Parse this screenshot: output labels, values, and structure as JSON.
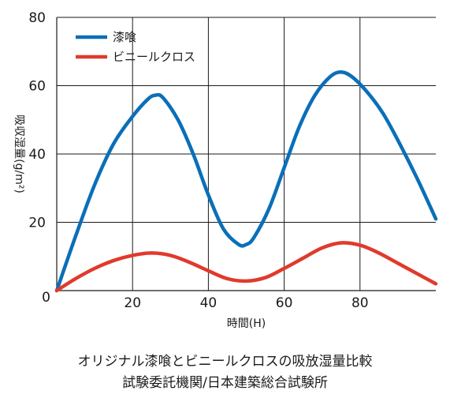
{
  "chart_data": {
    "type": "line",
    "xlim": [
      0,
      100
    ],
    "ylim": [
      0,
      80
    ],
    "x_ticks": [
      0,
      20,
      40,
      60,
      80
    ],
    "y_ticks": [
      0,
      20,
      40,
      60,
      80
    ],
    "x_tick_labels": [
      "0",
      "20",
      "40",
      "60",
      "80"
    ],
    "y_tick_labels": [
      "0",
      "20",
      "40",
      "60",
      "80"
    ],
    "xlabel": "時間(H)",
    "ylabel": "吸収湿量(g/m²)",
    "grid": true,
    "legend_position": "top-left",
    "series": [
      {
        "name": "漆喰",
        "color": "#0a6fb8",
        "x": [
          0,
          5,
          10,
          15,
          20,
          24,
          26,
          28,
          32,
          36,
          40,
          44,
          48,
          50,
          52,
          56,
          60,
          64,
          68,
          72,
          75,
          78,
          82,
          86,
          90,
          95,
          100
        ],
        "y": [
          0,
          16,
          31,
          43,
          51,
          56,
          57.2,
          56.5,
          50,
          40,
          28,
          18,
          13.5,
          13.5,
          15.5,
          24,
          36,
          48,
          57,
          62.5,
          64,
          62.5,
          58,
          52,
          44,
          33,
          21
        ]
      },
      {
        "name": "ビニールクロス",
        "color": "#e03a2c",
        "x": [
          0,
          5,
          10,
          15,
          20,
          25,
          30,
          35,
          40,
          45,
          50,
          55,
          60,
          65,
          70,
          75,
          80,
          85,
          90,
          95,
          100
        ],
        "y": [
          0,
          3.5,
          6.5,
          8.8,
          10.3,
          11,
          10.3,
          8.3,
          5.8,
          3.5,
          2.8,
          3.8,
          6.5,
          9.5,
          12.5,
          14,
          13.3,
          11,
          8,
          5,
          2
        ]
      }
    ]
  },
  "captions": {
    "line1": "オリジナル漆喰とビニールクロスの吸放湿量比較",
    "line2": "試験委託機関/日本建築総合試験所"
  }
}
